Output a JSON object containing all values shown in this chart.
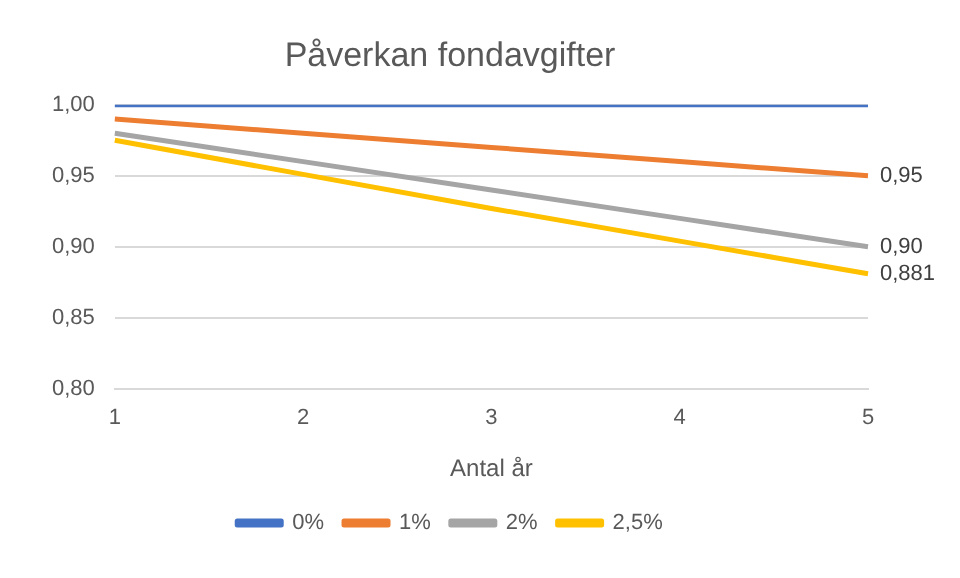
{
  "chart_data": {
    "type": "line",
    "title": "Påverkan fondavgifter",
    "xlabel": "Antal år",
    "categories": [
      "1",
      "2",
      "3",
      "4",
      "5"
    ],
    "series": [
      {
        "name": "0%",
        "color": "#4472c4",
        "values": [
          1,
          1,
          1,
          1,
          1
        ],
        "value_labels": [
          null,
          null,
          null,
          null,
          null
        ]
      },
      {
        "name": "1%",
        "color": "#ed7d31",
        "values": [
          0.99,
          0.98,
          0.97,
          0.96,
          0.95
        ],
        "value_labels": [
          null,
          null,
          null,
          null,
          "0,95"
        ]
      },
      {
        "name": "2%",
        "color": "#a5a5a5",
        "values": [
          0.98,
          0.96,
          0.94,
          0.92,
          0.9
        ],
        "value_labels": [
          null,
          null,
          null,
          null,
          "0,90"
        ]
      },
      {
        "name": "2,5%",
        "color": "#ffc000",
        "values": [
          0.975,
          0.951,
          0.927,
          0.904,
          0.881
        ],
        "value_labels": [
          null,
          null,
          null,
          null,
          "0,881"
        ]
      }
    ],
    "ylim": [
      0.8,
      1.0
    ],
    "yticks": [
      {
        "value": 0.8,
        "label": "0,80"
      },
      {
        "value": 0.85,
        "label": "0,85"
      },
      {
        "value": 0.9,
        "label": "0,90"
      },
      {
        "value": 0.95,
        "label": "0,95"
      },
      {
        "value": 1.0,
        "label": "1,00"
      }
    ],
    "grid": "y",
    "legend": "bottom",
    "marker": "none",
    "line_style": "solid"
  }
}
